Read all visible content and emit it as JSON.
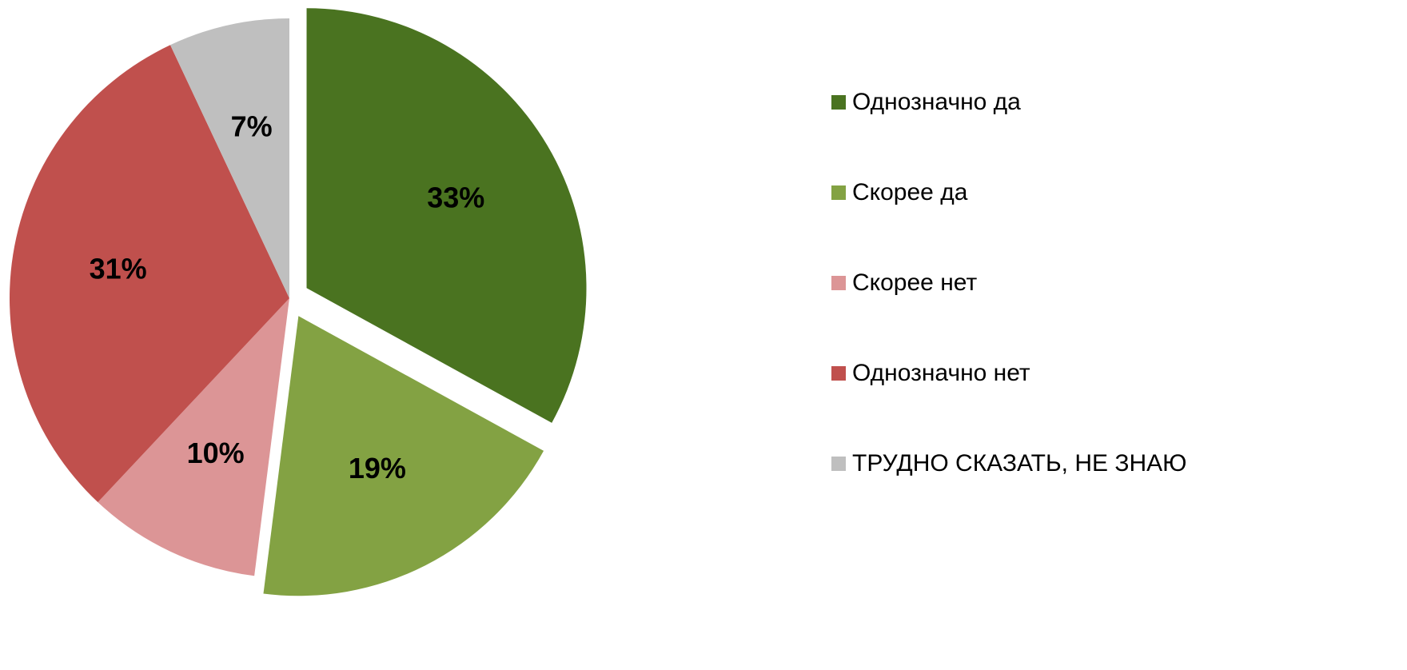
{
  "chart_data": {
    "type": "pie",
    "categories": [
      "Однозначно да",
      "Скорее да",
      "Скорее нет",
      "Однозначно нет",
      "ТРУДНО СКАЗАТЬ, НЕ ЗНАЮ"
    ],
    "values": [
      33,
      19,
      10,
      31,
      7
    ],
    "value_labels": [
      "33%",
      "19%",
      "10%",
      "31%",
      "7%"
    ],
    "colors": [
      "#4a7320",
      "#83a243",
      "#dc9596",
      "#c0504d",
      "#bfbfbf"
    ],
    "exploded": [
      true,
      true,
      false,
      false,
      false
    ],
    "legend": "right"
  }
}
